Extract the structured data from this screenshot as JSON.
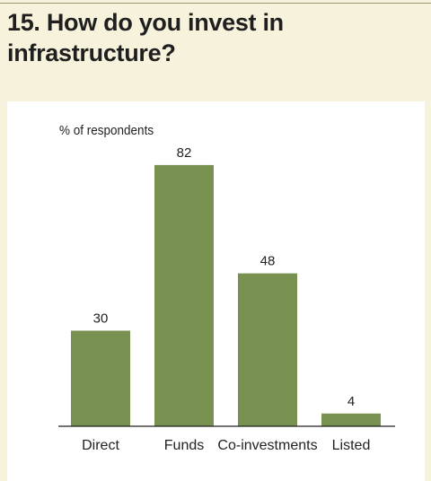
{
  "title": "15. How do you invest in infrastructure?",
  "chart_data": {
    "type": "bar",
    "ylabel": "% of respondents",
    "xlabel": "",
    "categories": [
      "Direct",
      "Funds",
      "Co-investments",
      "Listed"
    ],
    "values": [
      30,
      82,
      48,
      4
    ],
    "ylim": [
      0,
      100
    ],
    "grid": false,
    "legend": "none",
    "bar_color": "#789150",
    "axis_color": "#222222"
  }
}
